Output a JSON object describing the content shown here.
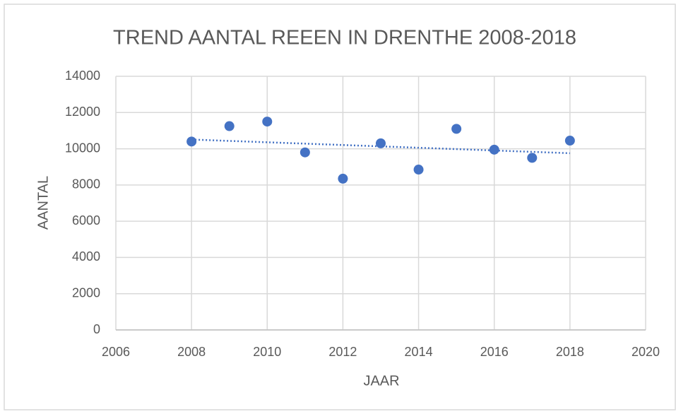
{
  "chart_data": {
    "type": "scatter",
    "title": "TREND AANTAL REEEN IN DRENTHE 2008-2018",
    "xlabel": "JAAR",
    "ylabel": "AANTAL",
    "x": [
      2008,
      2009,
      2010,
      2011,
      2012,
      2013,
      2014,
      2015,
      2016,
      2017,
      2018
    ],
    "values": [
      10400,
      11250,
      11500,
      9800,
      8350,
      10300,
      8850,
      11100,
      9950,
      9500,
      10450
    ],
    "color": "#4472c4",
    "xlim": [
      2006,
      2020
    ],
    "xticks": [
      2006,
      2008,
      2010,
      2012,
      2014,
      2016,
      2018,
      2020
    ],
    "ylim": [
      0,
      14000
    ],
    "yticks": [
      0,
      2000,
      4000,
      6000,
      8000,
      10000,
      12000,
      14000
    ],
    "grid": true,
    "trendline": "linear"
  }
}
